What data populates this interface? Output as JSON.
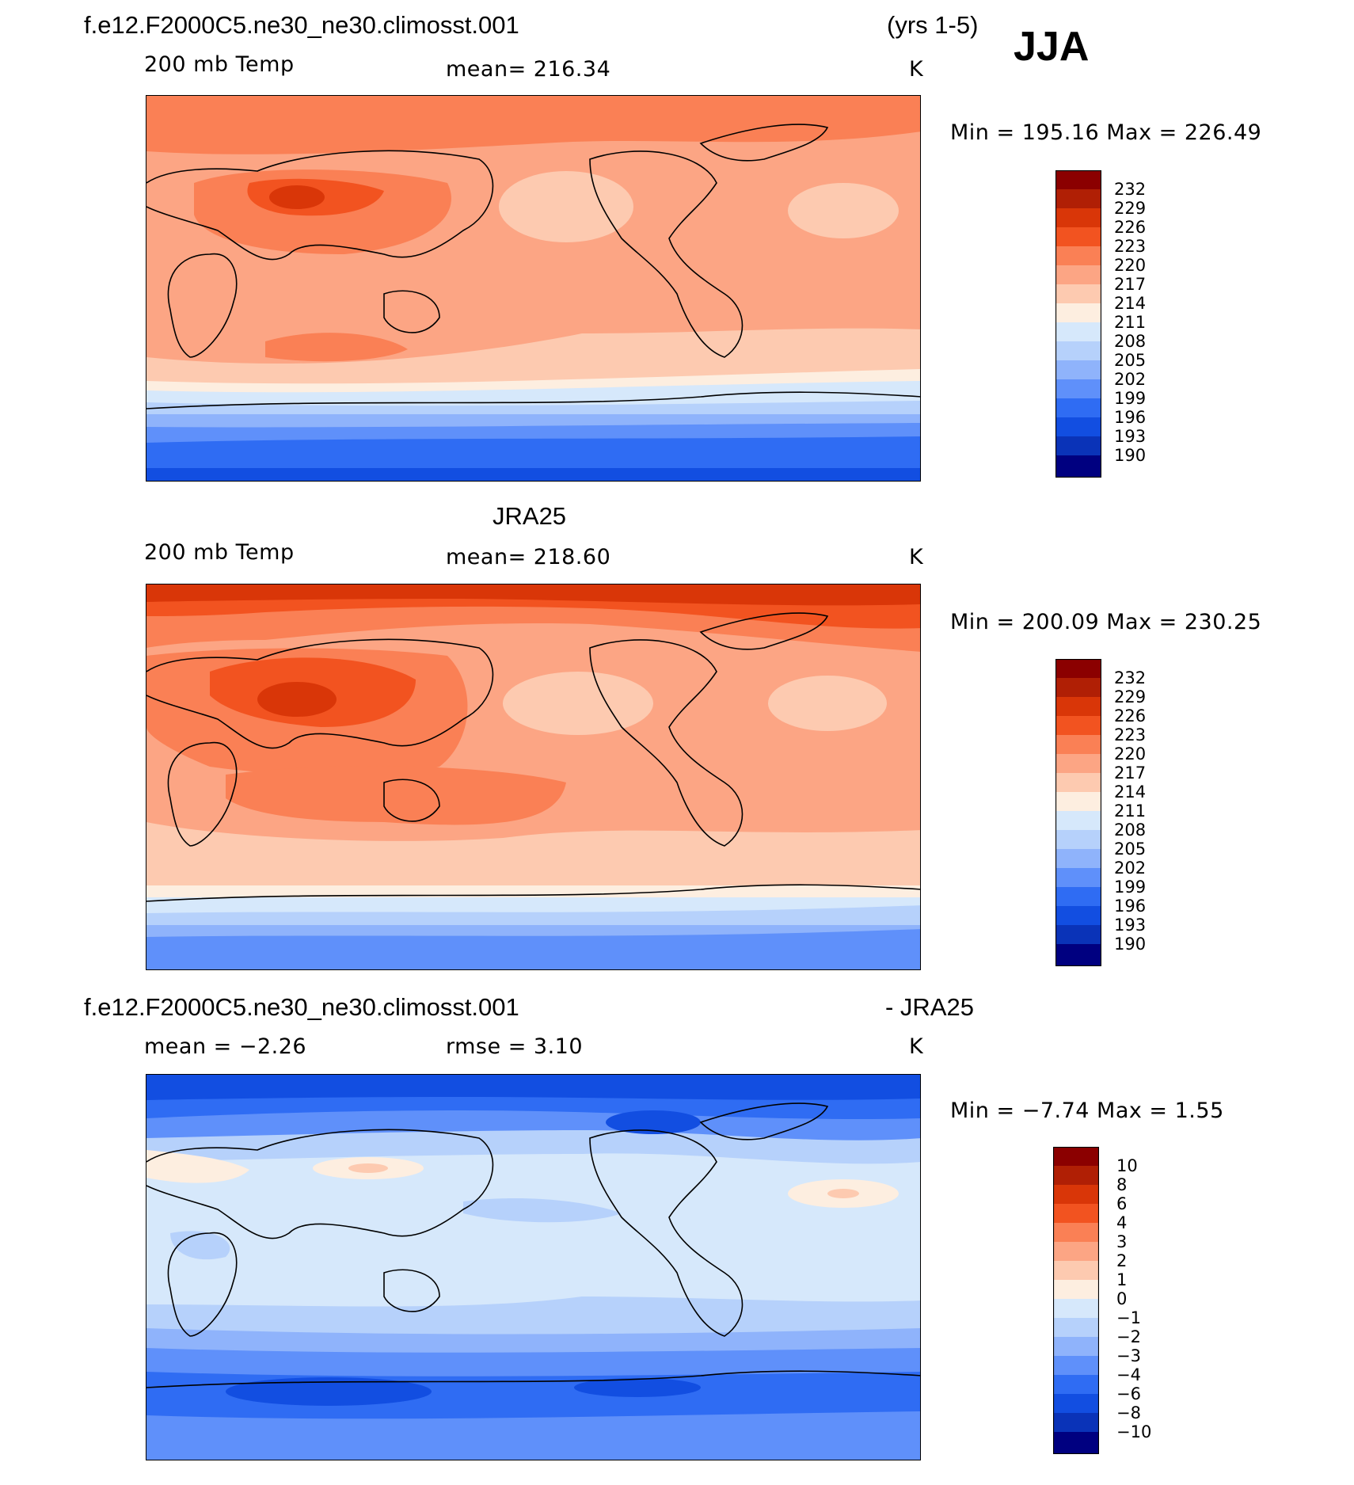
{
  "header": {
    "case_name": "f.e12.F2000C5.ne30_ne30.climosst.001",
    "years": "(yrs 1-5)",
    "season": "JJA"
  },
  "panels": [
    {
      "title": "",
      "left_label": "200 mb Temp",
      "center_label": "mean= 216.34",
      "units": "K",
      "minmax": "Min = 195.16 Max = 226.49",
      "colorbar_labels": [
        "232",
        "229",
        "226",
        "223",
        "220",
        "217",
        "214",
        "211",
        "208",
        "205",
        "202",
        "199",
        "196",
        "193",
        "190"
      ]
    },
    {
      "title": "JRA25",
      "left_label": "200 mb Temp",
      "center_label": "mean= 218.60",
      "units": "K",
      "minmax": "Min = 200.09 Max = 230.25",
      "colorbar_labels": [
        "232",
        "229",
        "226",
        "223",
        "220",
        "217",
        "214",
        "211",
        "208",
        "205",
        "202",
        "199",
        "196",
        "193",
        "190"
      ]
    },
    {
      "title_left": "f.e12.F2000C5.ne30_ne30.climosst.001",
      "title_right": "- JRA25",
      "left_label": "mean = −2.26",
      "center_label": "rmse = 3.10",
      "units": "K",
      "minmax": "Min = −7.74 Max = 1.55",
      "colorbar_labels": [
        "10",
        "8",
        "6",
        "4",
        "3",
        "2",
        "1",
        "0",
        "−1",
        "−2",
        "−3",
        "−4",
        "−6",
        "−8",
        "−10"
      ]
    }
  ],
  "colors": {
    "c16": "#8b0000",
    "c15": "#b01f05",
    "c14": "#d93608",
    "c13": "#f25320",
    "c12": "#fa8055",
    "c11": "#fca584",
    "c10": "#fdcab0",
    "c9": "#fdeee0",
    "c8": "#d6e8fb",
    "c7": "#b6d1fb",
    "c6": "#8fb3fb",
    "c5": "#5f90fa",
    "c4": "#2f6cf3",
    "c3": "#124ee1",
    "c2": "#0a33b8",
    "c1": "#050f88",
    "c0": "#000080"
  }
}
